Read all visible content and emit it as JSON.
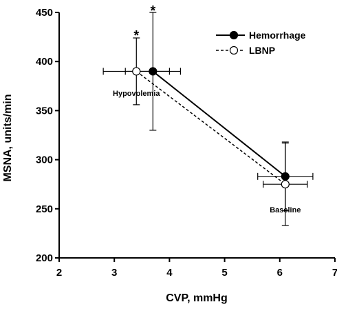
{
  "chart_data": {
    "type": "scatter",
    "title": "",
    "xlabel": "CVP, mmHg",
    "ylabel": "MSNA, units/min",
    "xlim": [
      2,
      7
    ],
    "ylim": [
      200,
      450
    ],
    "xticks": [
      "2",
      "3",
      "4",
      "5",
      "6",
      "7"
    ],
    "yticks": [
      "200",
      "250",
      "300",
      "350",
      "400",
      "450"
    ],
    "grid": false,
    "legend_position": "top-right",
    "series": [
      {
        "name": "Hemorrhage",
        "marker": "filled-circle",
        "line": "solid",
        "color": "#000000",
        "points": [
          {
            "x": 3.7,
            "y": 390,
            "x_err": 0.5,
            "y_err": 60
          },
          {
            "x": 6.1,
            "y": 283,
            "x_err": 0.5,
            "y_err": 35
          }
        ]
      },
      {
        "name": "LBNP",
        "marker": "open-circle",
        "line": "dashed",
        "color": "#000000",
        "points": [
          {
            "x": 3.4,
            "y": 390,
            "x_err": 0.6,
            "y_err": 34
          },
          {
            "x": 6.1,
            "y": 275,
            "x_err": 0.4,
            "y_err": 42
          }
        ]
      }
    ],
    "annotations": [
      {
        "text": "Hypovolemia",
        "x": 3.4,
        "y": 368
      },
      {
        "text": "Baseline",
        "x": 6.1,
        "y": 249
      },
      {
        "text": "*",
        "x": 3.4,
        "y": 427
      },
      {
        "text": "*",
        "x": 3.7,
        "y": 452
      }
    ]
  }
}
